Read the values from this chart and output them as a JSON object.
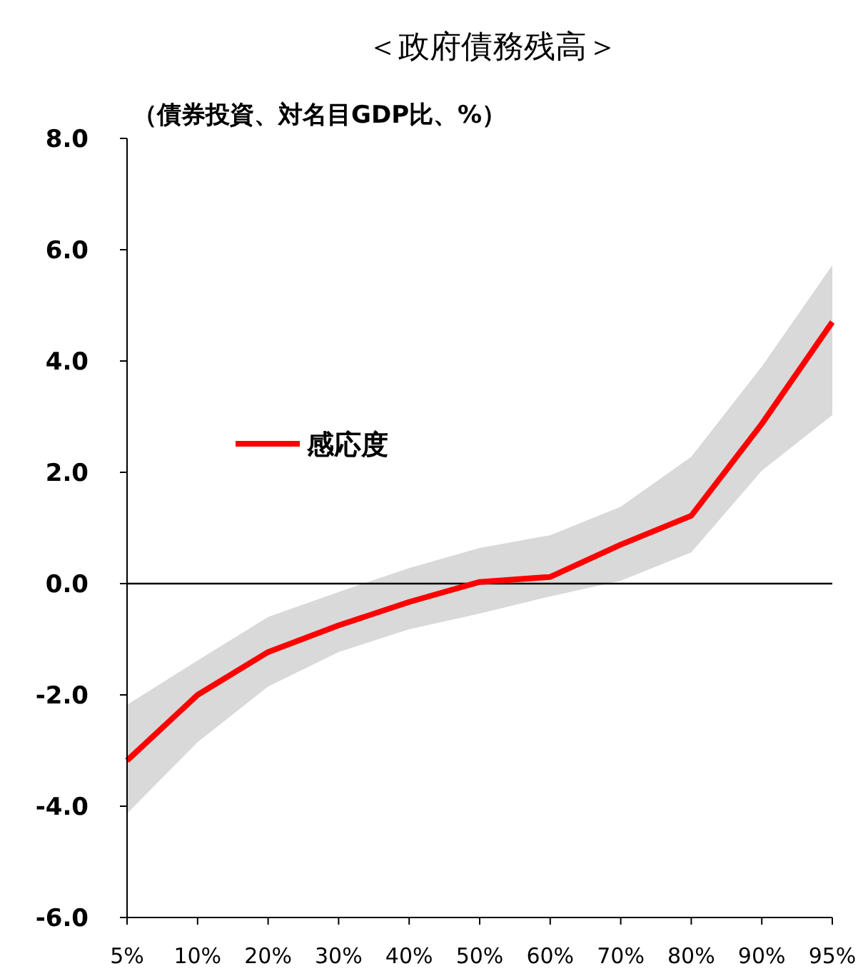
{
  "chart_data": {
    "type": "line",
    "title": "＜政府債務残高＞",
    "ylabel": "（債券投資、対名目GDP比、%）",
    "categories": [
      "5%",
      "10%",
      "20%",
      "30%",
      "40%",
      "50%",
      "60%",
      "70%",
      "80%",
      "90%",
      "95%"
    ],
    "series": [
      {
        "name": "感応度",
        "color": "#ff0000",
        "values": [
          -3.18,
          -2.0,
          -1.23,
          -0.75,
          -0.33,
          0.03,
          0.12,
          0.7,
          1.22,
          2.87,
          4.7
        ],
        "lower": [
          -4.13,
          -2.85,
          -1.85,
          -1.23,
          -0.82,
          -0.54,
          -0.23,
          0.05,
          0.56,
          2.03,
          3.03
        ],
        "upper": [
          -2.18,
          -1.38,
          -0.6,
          -0.15,
          0.28,
          0.64,
          0.87,
          1.38,
          2.28,
          3.9,
          5.72
        ]
      }
    ],
    "ylim": [
      -6,
      8
    ],
    "yticks": [
      {
        "value": -6,
        "label": "-6.0"
      },
      {
        "value": -4,
        "label": "-4.0"
      },
      {
        "value": -2,
        "label": "-2.0"
      },
      {
        "value": 0,
        "label": "0.0"
      },
      {
        "value": 2,
        "label": "2.0"
      },
      {
        "value": 4,
        "label": "4.0"
      },
      {
        "value": 6,
        "label": "6.0"
      },
      {
        "value": 8,
        "label": "8.0"
      }
    ],
    "ref_lines": [
      {
        "axis": "y",
        "value": 0,
        "color": "#000000"
      }
    ],
    "legend": "left",
    "grid": false,
    "marker": "none",
    "line_style": "solid"
  }
}
